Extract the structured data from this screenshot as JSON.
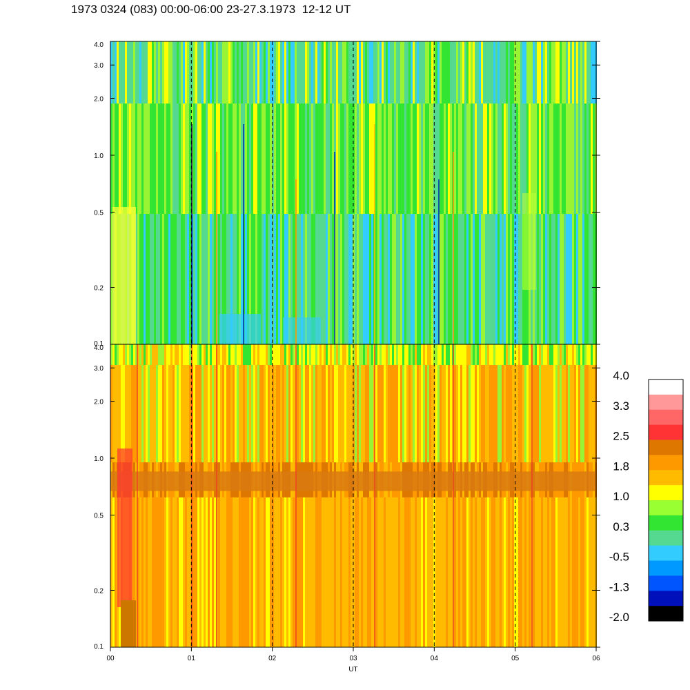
{
  "title": "1973 0324 (083) 00:00-06:00 23-27.3.1973  12-12 UT",
  "chart_data": {
    "type": "heatmap",
    "xlabel": "UT",
    "x_ticks": [
      "00",
      "01",
      "02",
      "03",
      "04",
      "05",
      "06"
    ],
    "xlim": [
      0,
      6
    ],
    "y_scale": "log",
    "ylim": [
      0.1,
      4.0
    ],
    "y_ticks": [
      "0.1",
      "0.2",
      "0.5",
      "1.0",
      "2.0",
      "3.0",
      "4.0"
    ],
    "dashed_vertical_lines_at": [
      1,
      2,
      3,
      4,
      5
    ],
    "panels": [
      {
        "id": "upper",
        "dominant_range": [
          -0.5,
          1.0
        ],
        "dominant_colors": [
          "#33e533",
          "#55d890",
          "#99f533",
          "#ffff00"
        ]
      },
      {
        "id": "lower",
        "dominant_range": [
          1.0,
          2.5
        ],
        "dominant_colors": [
          "#ffbb00",
          "#ff9900",
          "#dd7700"
        ],
        "band_y": [
          0.67,
          0.85
        ]
      }
    ],
    "colorbar": {
      "labels": [
        "4.0",
        "3.3",
        "2.5",
        "1.8",
        "1.0",
        "0.3",
        "-0.5",
        "-1.3",
        "-2.0"
      ],
      "colors": [
        "#ffffff",
        "#ff9999",
        "#ff6666",
        "#ff3333",
        "#dd7700",
        "#ff9900",
        "#ffbb00",
        "#ffff00",
        "#99ff33",
        "#33e533",
        "#55d890",
        "#33ccff",
        "#0099ff",
        "#0055ff",
        "#0011bb",
        "#000000"
      ]
    }
  }
}
